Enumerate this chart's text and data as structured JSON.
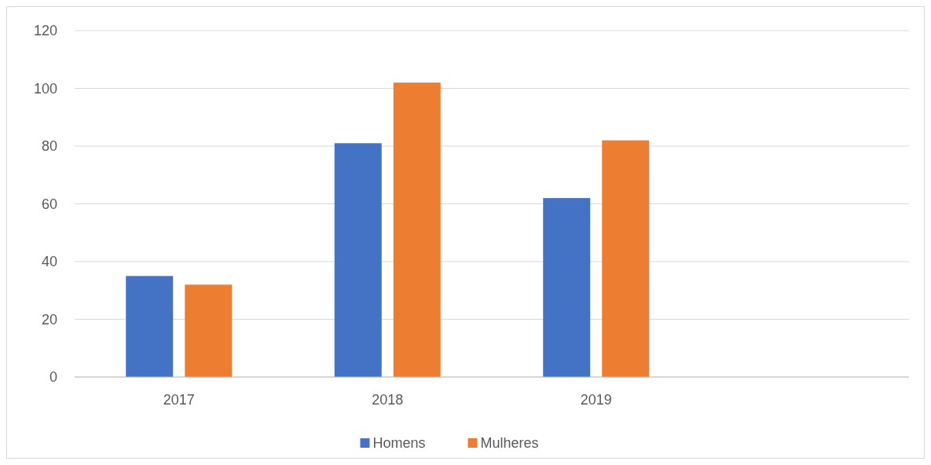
{
  "chart_data": {
    "type": "bar",
    "categories": [
      "2017",
      "2018",
      "2019",
      null
    ],
    "series": [
      {
        "name": "Homens",
        "color": "#4472c4",
        "values": [
          35,
          81,
          62,
          null
        ]
      },
      {
        "name": "Mulheres",
        "color": "#ed7d31",
        "values": [
          32,
          102,
          82,
          null
        ]
      }
    ],
    "ylim": [
      0,
      120
    ],
    "yticks": [
      0,
      20,
      40,
      60,
      80,
      100,
      120
    ],
    "grid": "y",
    "legend": "bottom"
  }
}
